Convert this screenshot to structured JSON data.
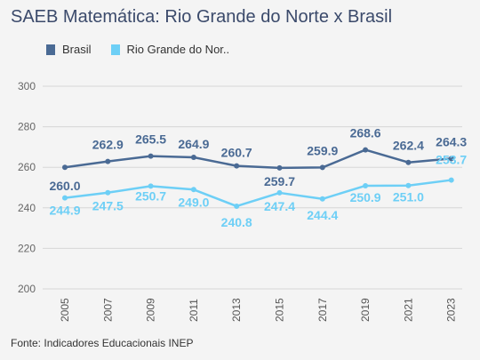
{
  "title": "SAEB Matemática: Rio Grande do Norte x Brasil",
  "source": "Fonte: Indicadores Educacionais INEP",
  "chart_data": {
    "type": "line",
    "x": [
      "2005",
      "2007",
      "2009",
      "2011",
      "2013",
      "2015",
      "2017",
      "2019",
      "2021",
      "2023"
    ],
    "ylim": [
      200,
      300
    ],
    "yticks": [
      "200",
      "220",
      "240",
      "260",
      "280",
      "300"
    ],
    "grid": true,
    "legend_position": "top-left",
    "series": [
      {
        "name": "Brasil",
        "color": "#4a6a94",
        "values": [
          260.0,
          262.9,
          265.5,
          264.9,
          260.7,
          259.7,
          259.9,
          268.6,
          262.4,
          264.3
        ],
        "labels": [
          "260.0",
          "262.9",
          "265.5",
          "264.9",
          "260.7",
          "259.7",
          "259.9",
          "268.6",
          "262.4",
          "264.3"
        ]
      },
      {
        "name": "Rio Grande do Nor..",
        "color": "#6dcff6",
        "values": [
          244.9,
          247.5,
          250.7,
          249.0,
          240.8,
          247.4,
          244.4,
          250.9,
          251.0,
          253.7
        ],
        "labels": [
          "244.9",
          "247.5",
          "250.7",
          "249.0",
          "240.8",
          "247.4",
          "244.4",
          "250.9",
          "251.0",
          "253.7"
        ]
      }
    ]
  }
}
